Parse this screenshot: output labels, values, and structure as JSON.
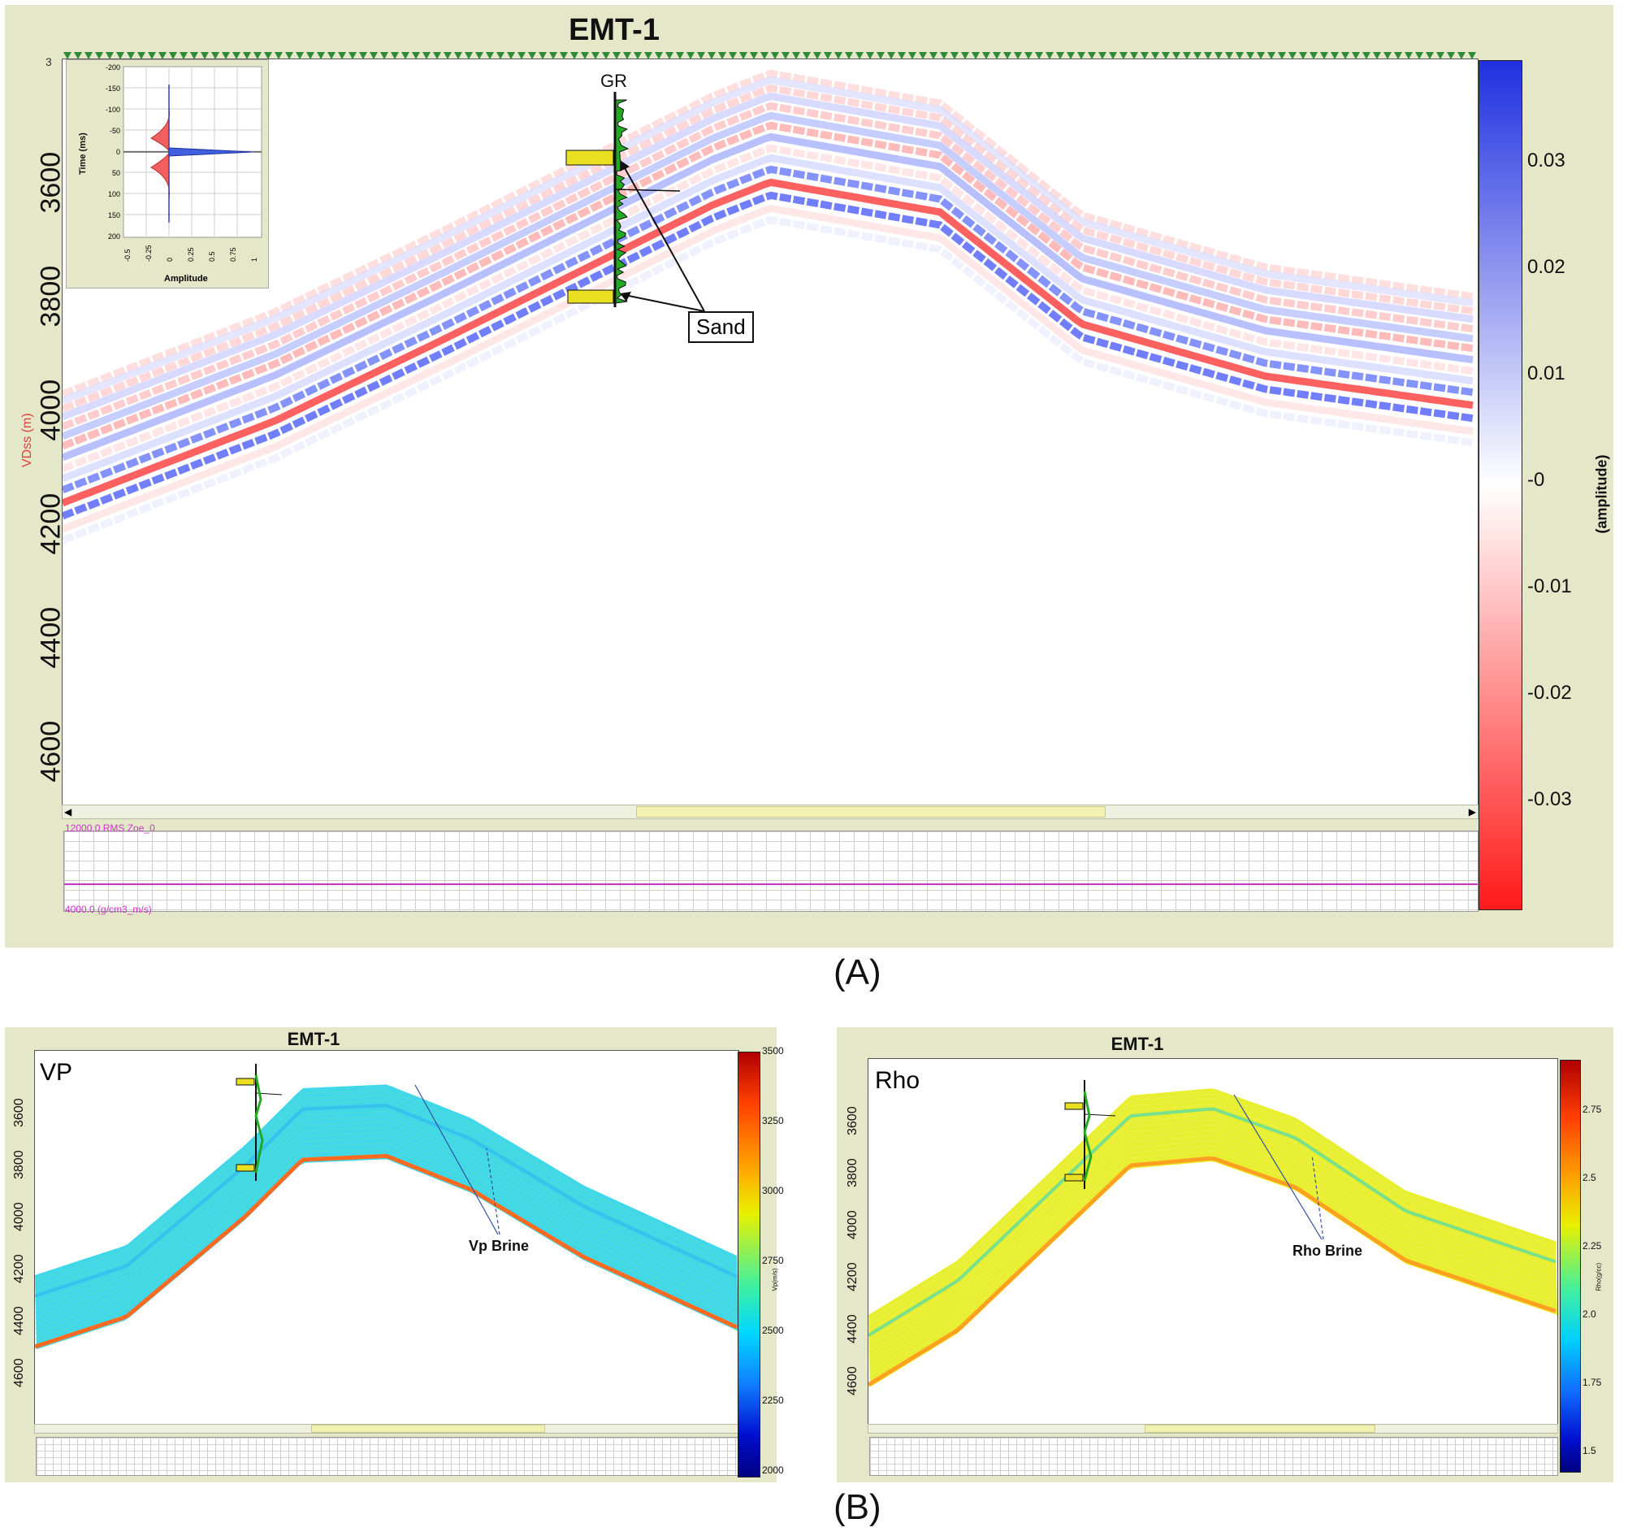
{
  "panel_a": {
    "title": "EMT-1",
    "depth_axis_label": "VDss (m)",
    "depth_ticks": [
      "3600",
      "3800",
      "4000",
      "4200",
      "4400",
      "4600"
    ],
    "top_left_tick": "3",
    "colorbar": {
      "label": "(amplitude)",
      "ticks": [
        "0.03",
        "0.02",
        "0.01",
        "-0",
        "-0.01",
        "-0.02",
        "-0.03"
      ],
      "colors": [
        "#2030e0",
        "#ffffff",
        "#ff1a1a"
      ]
    },
    "well_log_label": "GR",
    "annotation": "Sand",
    "inset": {
      "ylabel": "Time (ms)",
      "xlabel": "Amplitude",
      "y_ticks": [
        "-200",
        "-150",
        "-100",
        "-50",
        "0",
        "50",
        "100",
        "150",
        "200"
      ],
      "x_ticks": [
        "-0.5",
        "-0.25",
        "0",
        "0.25",
        "0.5",
        "0.75",
        "1"
      ]
    },
    "lower_track": {
      "top_label": "12000.0 RMS Zoe_0",
      "bottom_label": "4000.0 (g/cm3_m/s)"
    }
  },
  "caption_a": "(A)",
  "panel_vp": {
    "title": "EMT-1",
    "corner_label": "VP",
    "depth_ticks": [
      "3600",
      "3800",
      "4000",
      "4200",
      "4400",
      "4600"
    ],
    "colorbar_ticks": [
      "3500",
      "3250",
      "3000",
      "2750",
      "2500",
      "2250",
      "2000"
    ],
    "colorbar_label": "Vp(m/s)",
    "annotation": "Vp Brine"
  },
  "panel_rho": {
    "title": "EMT-1",
    "corner_label": "Rho",
    "depth_ticks": [
      "3600",
      "3800",
      "4000",
      "4200",
      "4400",
      "4600"
    ],
    "colorbar_ticks": [
      "2.75",
      "2.5",
      "2.25",
      "2.0",
      "1.75",
      "1.5"
    ],
    "colorbar_label": "Rho(g/cc)",
    "annotation": "Rho Brine"
  },
  "caption_b": "(B)",
  "colors": {
    "panel_bg": "#e4e8c8",
    "lower_track_line": "#cc33cc",
    "gr_fill": "#22aa22",
    "sand_fill": "#e8e020"
  }
}
